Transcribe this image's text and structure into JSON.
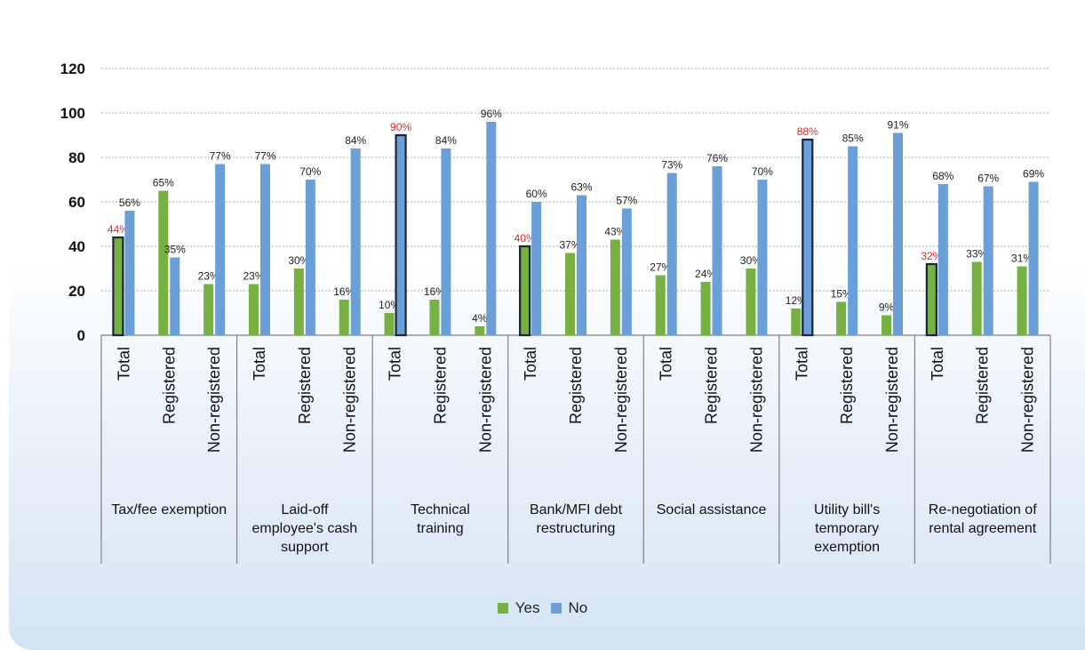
{
  "chart_data": {
    "type": "bar",
    "title": "",
    "ylim": [
      0,
      120
    ],
    "yticks": [
      0,
      20,
      40,
      60,
      80,
      100,
      120
    ],
    "grid": true,
    "legend_position": "bottom",
    "subcategories": [
      "Total",
      "Registered",
      "Non-registered"
    ],
    "groups": [
      "Tax/fee exemption",
      "Laid-off employee's cash support",
      "Technical training",
      "Bank/MFI debt restructuring",
      "Social assistance",
      "Utility bill's temporary exemption",
      "Re-negotiation of rental agreement"
    ],
    "series": [
      {
        "name": "Yes",
        "color": "#77b144",
        "values": [
          44,
          65,
          23,
          23,
          30,
          16,
          10,
          16,
          4,
          40,
          37,
          43,
          27,
          24,
          30,
          12,
          15,
          9,
          32,
          33,
          31
        ]
      },
      {
        "name": "No",
        "color": "#6a9fd8",
        "values": [
          56,
          35,
          77,
          77,
          70,
          84,
          90,
          84,
          96,
          60,
          63,
          57,
          73,
          76,
          70,
          88,
          85,
          91,
          68,
          67,
          69
        ]
      }
    ],
    "highlighted": [
      {
        "group": 0,
        "series": "Yes",
        "label_color": "#e0262a"
      },
      {
        "group": 2,
        "series": "No",
        "label_color": "#e0262a"
      },
      {
        "group": 3,
        "series": "Yes",
        "label_color": "#e0262a"
      },
      {
        "group": 5,
        "series": "No",
        "label_color": "#e0262a"
      },
      {
        "group": 6,
        "series": "Yes",
        "label_color": "#e0262a"
      }
    ]
  },
  "title_text": "",
  "legend": [
    {
      "label": "Yes",
      "color": "#77b144"
    },
    {
      "label": "No",
      "color": "#6a9fd8"
    }
  ]
}
